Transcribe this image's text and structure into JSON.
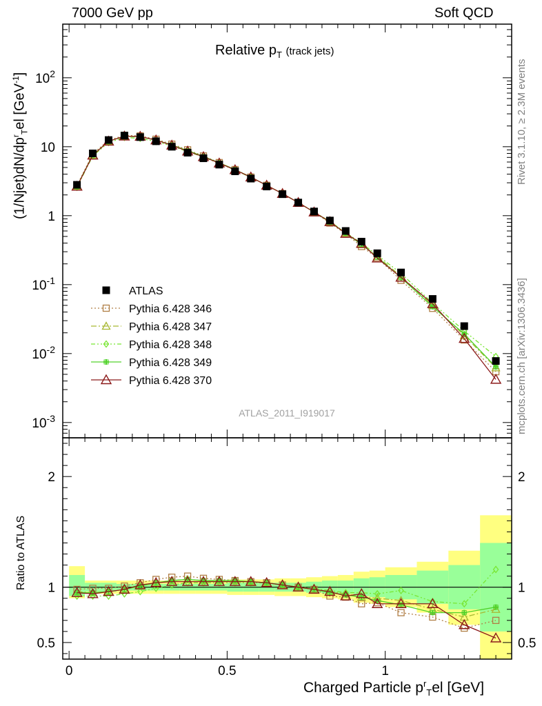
{
  "header": {
    "left": "7000 GeV pp",
    "right": "Soft QCD"
  },
  "side_labels": {
    "rivet": "Rivet 3.1.10, ≥ 2.3M events",
    "mcplots": "mcplots.cern.ch [arXiv:1306.3436]"
  },
  "plot_title": {
    "main": "Relative p",
    "sub": "T",
    "suffix": "(track jets)"
  },
  "analysis_id": "ATLAS_2011_I919017",
  "axes": {
    "main_ylabel": "(1/Njet)dN/dp",
    "main_ylabel_sup": "r",
    "main_ylabel_sub": "T",
    "main_ylabel_tail": "el [GeV",
    "main_ylabel_unit_sup": "-1",
    "main_ylabel_end": "]",
    "ratio_ylabel": "Ratio to ATLAS",
    "xlabel_main": "Charged Particle p",
    "xlabel_sup": "r",
    "xlabel_sub": "T",
    "xlabel_tail": "el [GeV]"
  },
  "colors": {
    "data": "#000000",
    "p346": "#b07e45",
    "p347": "#a8b832",
    "p348": "#78e632",
    "p349": "#50d22a",
    "p370": "#8b1a1a",
    "band_outer": "#ffff80",
    "band_inner": "#99ff99"
  },
  "chart_data": {
    "type": "line",
    "x_scale": "linear",
    "y_scale_main": "log",
    "xlim": [
      -0.02,
      1.4
    ],
    "ylim_main": [
      0.0006,
      600
    ],
    "ylim_ratio": [
      0.35,
      2.35
    ],
    "x_ticks": [
      0,
      0.5,
      1
    ],
    "x_tick_labels": [
      "0",
      "0.5",
      "1"
    ],
    "main_y_ticks": [
      "10^-3",
      "10^-2",
      "10^-1",
      "1",
      "10",
      "10^2"
    ],
    "ratio_y_ticks": [
      "0.5",
      "1",
      "2"
    ],
    "x": [
      0.025,
      0.075,
      0.125,
      0.175,
      0.225,
      0.275,
      0.325,
      0.375,
      0.425,
      0.475,
      0.525,
      0.575,
      0.625,
      0.675,
      0.725,
      0.775,
      0.825,
      0.875,
      0.925,
      0.975,
      1.05,
      1.15,
      1.25,
      1.35
    ],
    "bin_edges": [
      0,
      0.05,
      0.1,
      0.15,
      0.2,
      0.25,
      0.3,
      0.35,
      0.4,
      0.45,
      0.5,
      0.55,
      0.6,
      0.65,
      0.7,
      0.75,
      0.8,
      0.85,
      0.9,
      0.95,
      1.0,
      1.1,
      1.2,
      1.3,
      1.4
    ],
    "legend": {
      "placement": "lower-left",
      "entries": [
        "ATLAS",
        "Pythia 6.428 346",
        "Pythia 6.428 347",
        "Pythia 6.428 348",
        "Pythia 6.428 349",
        "Pythia 6.428 370"
      ]
    },
    "data": {
      "name": "ATLAS",
      "values": [
        2.8,
        8.0,
        12.5,
        14.5,
        13.8,
        12.0,
        10.0,
        8.2,
        6.8,
        5.5,
        4.4,
        3.45,
        2.65,
        2.05,
        1.55,
        1.15,
        0.85,
        0.6,
        0.42,
        0.285,
        0.15,
        0.062,
        0.025,
        0.0078
      ]
    },
    "series": [
      {
        "name": "Pythia 6.428 346",
        "key": "p346",
        "marker": "square",
        "dash": "2,3",
        "ratio": [
          0.98,
          0.99,
          0.99,
          1.01,
          1.04,
          1.07,
          1.09,
          1.1,
          1.08,
          1.07,
          1.06,
          1.05,
          1.04,
          1.02,
          1.0,
          0.98,
          0.92,
          0.91,
          0.85,
          0.86,
          0.77,
          0.73,
          0.63,
          0.7
        ]
      },
      {
        "name": "Pythia 6.428 347",
        "key": "p347",
        "marker": "triangle",
        "dash": "8,3,2,3",
        "ratio": [
          0.96,
          0.95,
          0.96,
          0.98,
          1.01,
          1.04,
          1.06,
          1.07,
          1.06,
          1.06,
          1.06,
          1.05,
          1.04,
          1.02,
          1.0,
          0.98,
          0.96,
          0.94,
          0.91,
          0.9,
          0.88,
          0.8,
          0.73,
          0.8
        ]
      },
      {
        "name": "Pythia 6.428 348",
        "key": "p348",
        "marker": "diamond",
        "dash": "6,3,2,3,2,3",
        "ratio": [
          0.92,
          0.92,
          0.92,
          0.94,
          0.96,
          0.99,
          1.02,
          1.04,
          1.04,
          1.04,
          1.04,
          1.04,
          1.04,
          1.02,
          1.0,
          0.99,
          0.97,
          0.95,
          0.95,
          0.94,
          0.97,
          0.87,
          0.85,
          1.16
        ]
      },
      {
        "name": "Pythia 6.428 349",
        "key": "p349",
        "marker": "cross",
        "dash": "",
        "ratio": [
          0.95,
          0.95,
          0.96,
          0.98,
          1.01,
          1.04,
          1.06,
          1.07,
          1.06,
          1.06,
          1.06,
          1.05,
          1.04,
          1.02,
          1.0,
          0.98,
          0.95,
          0.93,
          0.91,
          0.88,
          0.84,
          0.77,
          0.77,
          0.82
        ]
      },
      {
        "name": "Pythia 6.428 370",
        "key": "p370",
        "marker": "triangle-open-large",
        "dash": "",
        "ratio": [
          0.95,
          0.94,
          0.96,
          0.98,
          1.02,
          1.04,
          1.05,
          1.05,
          1.05,
          1.05,
          1.05,
          1.05,
          1.04,
          1.02,
          1.0,
          0.98,
          0.96,
          0.92,
          0.94,
          0.85,
          0.85,
          0.85,
          0.66,
          0.54
        ]
      }
    ],
    "bands": {
      "outer_lo": [
        0.9,
        0.94,
        0.94,
        0.94,
        0.94,
        0.94,
        0.94,
        0.94,
        0.94,
        0.94,
        0.93,
        0.93,
        0.93,
        0.92,
        0.92,
        0.91,
        0.9,
        0.89,
        0.86,
        0.85,
        0.82,
        0.77,
        0.66,
        0.35
      ],
      "outer_hi": [
        1.19,
        1.06,
        1.06,
        1.06,
        1.06,
        1.06,
        1.06,
        1.06,
        1.06,
        1.06,
        1.07,
        1.07,
        1.07,
        1.08,
        1.08,
        1.09,
        1.1,
        1.11,
        1.14,
        1.15,
        1.18,
        1.23,
        1.33,
        1.65
      ],
      "inner_lo": [
        0.92,
        0.96,
        0.96,
        0.97,
        0.97,
        0.97,
        0.97,
        0.97,
        0.97,
        0.97,
        0.96,
        0.96,
        0.96,
        0.96,
        0.96,
        0.95,
        0.94,
        0.94,
        0.92,
        0.91,
        0.89,
        0.85,
        0.8,
        0.6
      ],
      "inner_hi": [
        1.11,
        1.04,
        1.04,
        1.03,
        1.03,
        1.03,
        1.03,
        1.03,
        1.03,
        1.03,
        1.04,
        1.04,
        1.04,
        1.04,
        1.04,
        1.05,
        1.06,
        1.06,
        1.08,
        1.09,
        1.11,
        1.15,
        1.2,
        1.4
      ]
    }
  }
}
